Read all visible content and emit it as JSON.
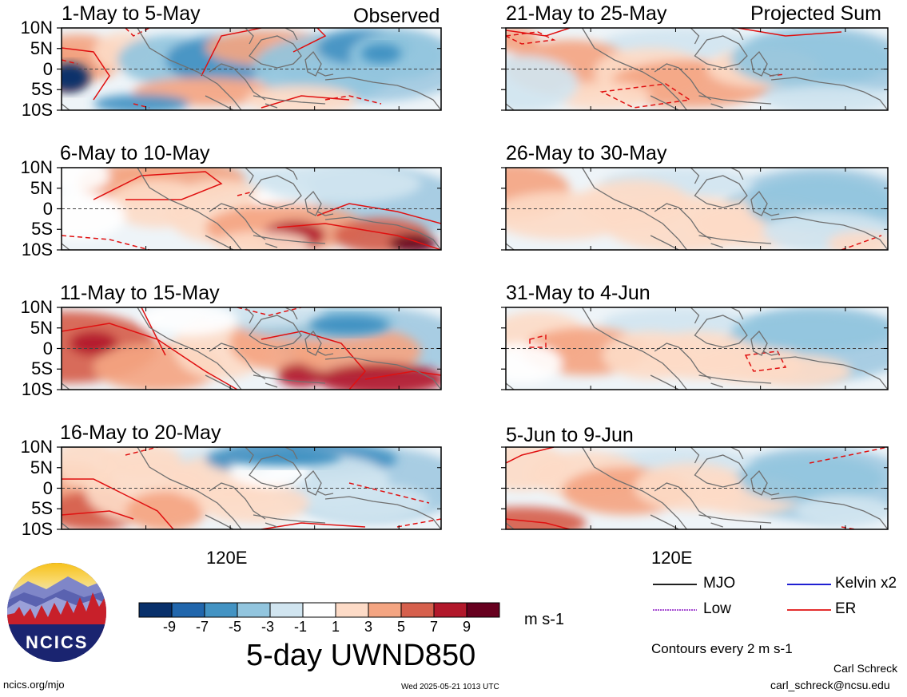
{
  "observed_label": "Observed",
  "projected_label": "Projected Sum",
  "panels": {
    "left": [
      "1-May to 5-May",
      "6-May to 10-May",
      "11-May to 15-May",
      "16-May to 20-May"
    ],
    "right": [
      "21-May to 25-May",
      "26-May to 30-May",
      "31-May to 4-Jun",
      "5-Jun to 9-Jun"
    ]
  },
  "lat_ticks": [
    "10N",
    "5N",
    "0",
    "5S",
    "10S"
  ],
  "lon_label": "120E",
  "colorbar": {
    "colors": [
      "#08306b",
      "#2166ac",
      "#4393c3",
      "#92c5de",
      "#d1e5f0",
      "#ffffff",
      "#fddbc7",
      "#f4a582",
      "#d6604d",
      "#b2182b",
      "#67001f"
    ],
    "labels": [
      "-9",
      "-7",
      "-5",
      "-3",
      "-1",
      "1",
      "3",
      "5",
      "7",
      "9"
    ],
    "units": "m s-1"
  },
  "main_title": "5-day UWND850",
  "legend": {
    "items": [
      {
        "name": "MJO",
        "color": "#000000",
        "dashed": false
      },
      {
        "name": "Kelvin x2",
        "color": "#0000cc",
        "dashed": false
      },
      {
        "name": "Low",
        "color": "#9933cc",
        "dashed": true
      },
      {
        "name": "ER",
        "color": "#e01010",
        "dashed": false
      }
    ],
    "contour_note": "Contours every 2 m s-1"
  },
  "logo_text": "NCICS",
  "author": "Carl Schreck",
  "email": "carl_schreck@ncsu.edu",
  "website": "ncics.org/mjo",
  "timestamp": "Wed 2025-05-21 1013 UTC"
}
